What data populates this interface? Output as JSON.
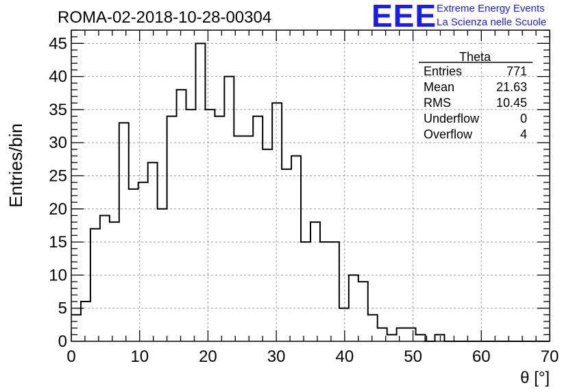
{
  "title": "ROMA-02-2018-10-28-00304",
  "logo": {
    "mark": "EEE",
    "line1": "Extreme Energy Events",
    "line2": "La Scienza nelle Scuole",
    "color": "#1a1aff"
  },
  "stats": {
    "name": "Theta",
    "rows": [
      {
        "label": "Entries",
        "value": "771"
      },
      {
        "label": "Mean",
        "value": "21.63"
      },
      {
        "label": "RMS",
        "value": "10.45"
      },
      {
        "label": "Underflow",
        "value": "0"
      },
      {
        "label": "Overflow",
        "value": "4"
      }
    ]
  },
  "chart_data": {
    "type": "histogram",
    "title": "ROMA-02-2018-10-28-00304",
    "xlabel": "θ [°]",
    "ylabel": "Entries/bin",
    "xlim": [
      0,
      70
    ],
    "ylim": [
      0,
      47
    ],
    "bin_width": 1.4,
    "bin_edges_start": 0,
    "xticks": [
      0,
      10,
      20,
      30,
      40,
      50,
      60,
      70
    ],
    "yticks": [
      0,
      5,
      10,
      15,
      20,
      25,
      30,
      35,
      40,
      45
    ],
    "grid": true,
    "legend_placement": "top-right",
    "values": [
      4,
      6,
      17,
      19,
      18,
      33,
      23,
      24,
      27,
      20,
      34,
      38,
      35,
      45,
      35,
      34,
      40,
      31,
      31,
      34,
      29,
      36,
      26,
      28,
      15,
      18,
      15,
      15,
      5,
      10,
      9,
      4,
      2,
      1,
      2,
      2,
      1,
      0,
      1,
      0,
      0,
      0,
      0,
      0,
      0,
      0,
      0,
      0,
      0,
      0
    ]
  }
}
